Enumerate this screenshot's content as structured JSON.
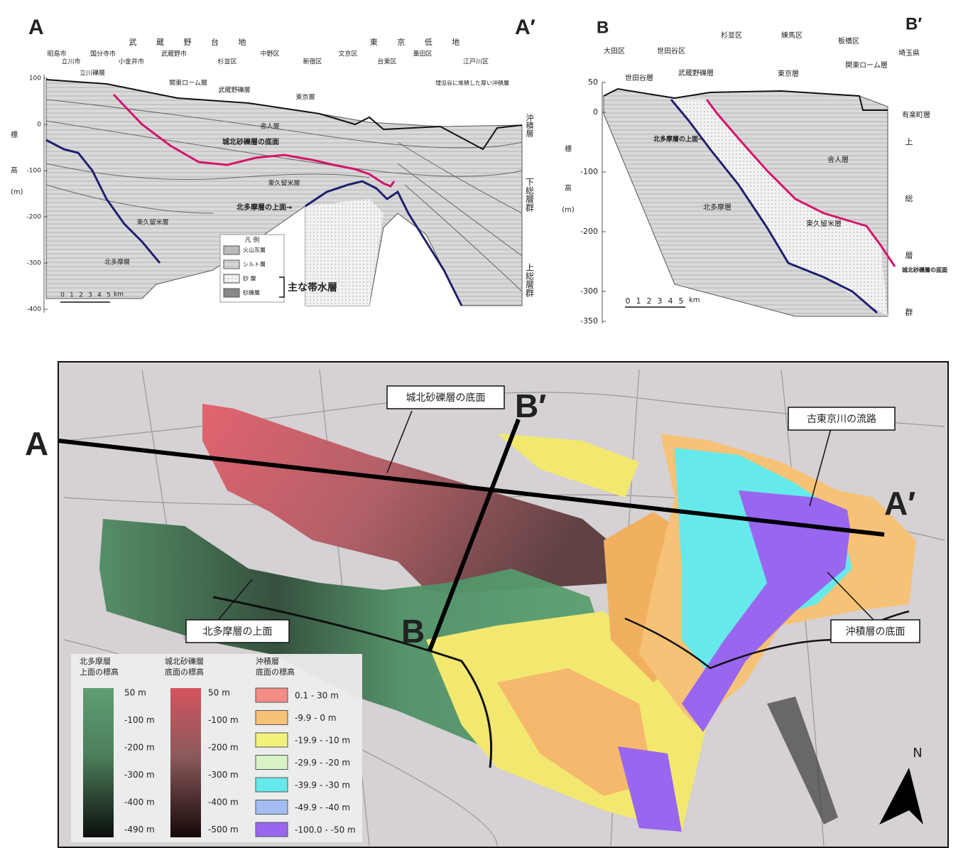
{
  "section_a": {
    "label_start": "A",
    "label_end": "A′",
    "regions": [
      "武 蔵 野 台 地",
      "東 京 低 地"
    ],
    "places": [
      "昭島市",
      "立川市",
      "国分寺市",
      "小金井市",
      "武蔵野市",
      "杉並区",
      "中野区",
      "新宿区",
      "文京区",
      "台東区",
      "墨田区",
      "江戸川区"
    ],
    "strata": [
      "立川礫層",
      "関東ローム層",
      "武蔵野礫層",
      "東京層",
      "舎人層",
      "東久留米層",
      "北多摩層",
      "東久留米層"
    ],
    "annotations": [
      "城北砂礫層の底面",
      "北多摩層の上面→",
      "埋没谷に堆積した厚い沖積層"
    ],
    "axis_label": [
      "標",
      "高",
      "(m)"
    ],
    "yticks": [
      100,
      0,
      -100,
      -200,
      -300,
      -400
    ],
    "right_labels": [
      "沖積層",
      "下総層群",
      "上総層群"
    ],
    "legend": {
      "title": "凡 例",
      "items": [
        "火山灰層",
        "シルト層",
        "砂 層",
        "砂礫層"
      ],
      "aquifer": "主な帯水層"
    },
    "scale": [
      0,
      1,
      2,
      3,
      4,
      5
    ],
    "scale_unit": "km"
  },
  "section_b": {
    "label_start": "B",
    "label_end": "B′",
    "places": [
      "大田区",
      "世田谷区",
      "杉並区",
      "練馬区",
      "板橋区",
      "埼玉県"
    ],
    "strata": [
      "世田谷層",
      "武蔵野礫層",
      "東京層",
      "関東ローム層",
      "舎人層",
      "北多摩層",
      "東久留米層",
      "有楽町層"
    ],
    "annotations": [
      "北多摩層の上面→",
      "城北砂礫層の底面"
    ],
    "axis_label": [
      "標",
      "高",
      "(m)"
    ],
    "yticks": [
      50,
      0,
      -100,
      -200,
      -300,
      -350
    ],
    "right_labels": [
      "上",
      "総",
      "層",
      "群"
    ],
    "scale": [
      0,
      1,
      2,
      3,
      4,
      5
    ],
    "scale_unit": "km"
  },
  "map": {
    "section_labels": [
      "A",
      "A′",
      "B",
      "B′"
    ],
    "callouts": [
      "城北砂礫層の底面",
      "古東京川の流路",
      "北多摩層の上面",
      "沖積層の底面"
    ],
    "north": "N",
    "legend": {
      "kitatama": {
        "title": [
          "北多摩層",
          "上面の標高"
        ],
        "labels": [
          "50 m",
          "-100 m",
          "-200 m",
          "-300 m",
          "-400 m",
          "-490 m"
        ]
      },
      "johoku": {
        "title": [
          "城北砂礫層",
          "底面の標高"
        ],
        "labels": [
          "50 m",
          "-100 m",
          "-200 m",
          "-300 m",
          "-400 m",
          "-500 m"
        ]
      },
      "alluvium": {
        "title": [
          "沖積層",
          "底面の標高"
        ],
        "classes": [
          {
            "label": "0.1 - 30 m",
            "color": "#f28c84"
          },
          {
            "label": "-9.9 - 0 m",
            "color": "#f6c277"
          },
          {
            "label": "-19.9 - -10 m",
            "color": "#f2f27a"
          },
          {
            "label": "-29.9 - -20 m",
            "color": "#d6f2c6"
          },
          {
            "label": "-39.9 - -30 m",
            "color": "#66e9ea"
          },
          {
            "label": "-49.9 - -40 m",
            "color": "#a3bdf2"
          },
          {
            "label": "-100.0 - -50 m",
            "color": "#9966f0"
          }
        ]
      }
    }
  }
}
